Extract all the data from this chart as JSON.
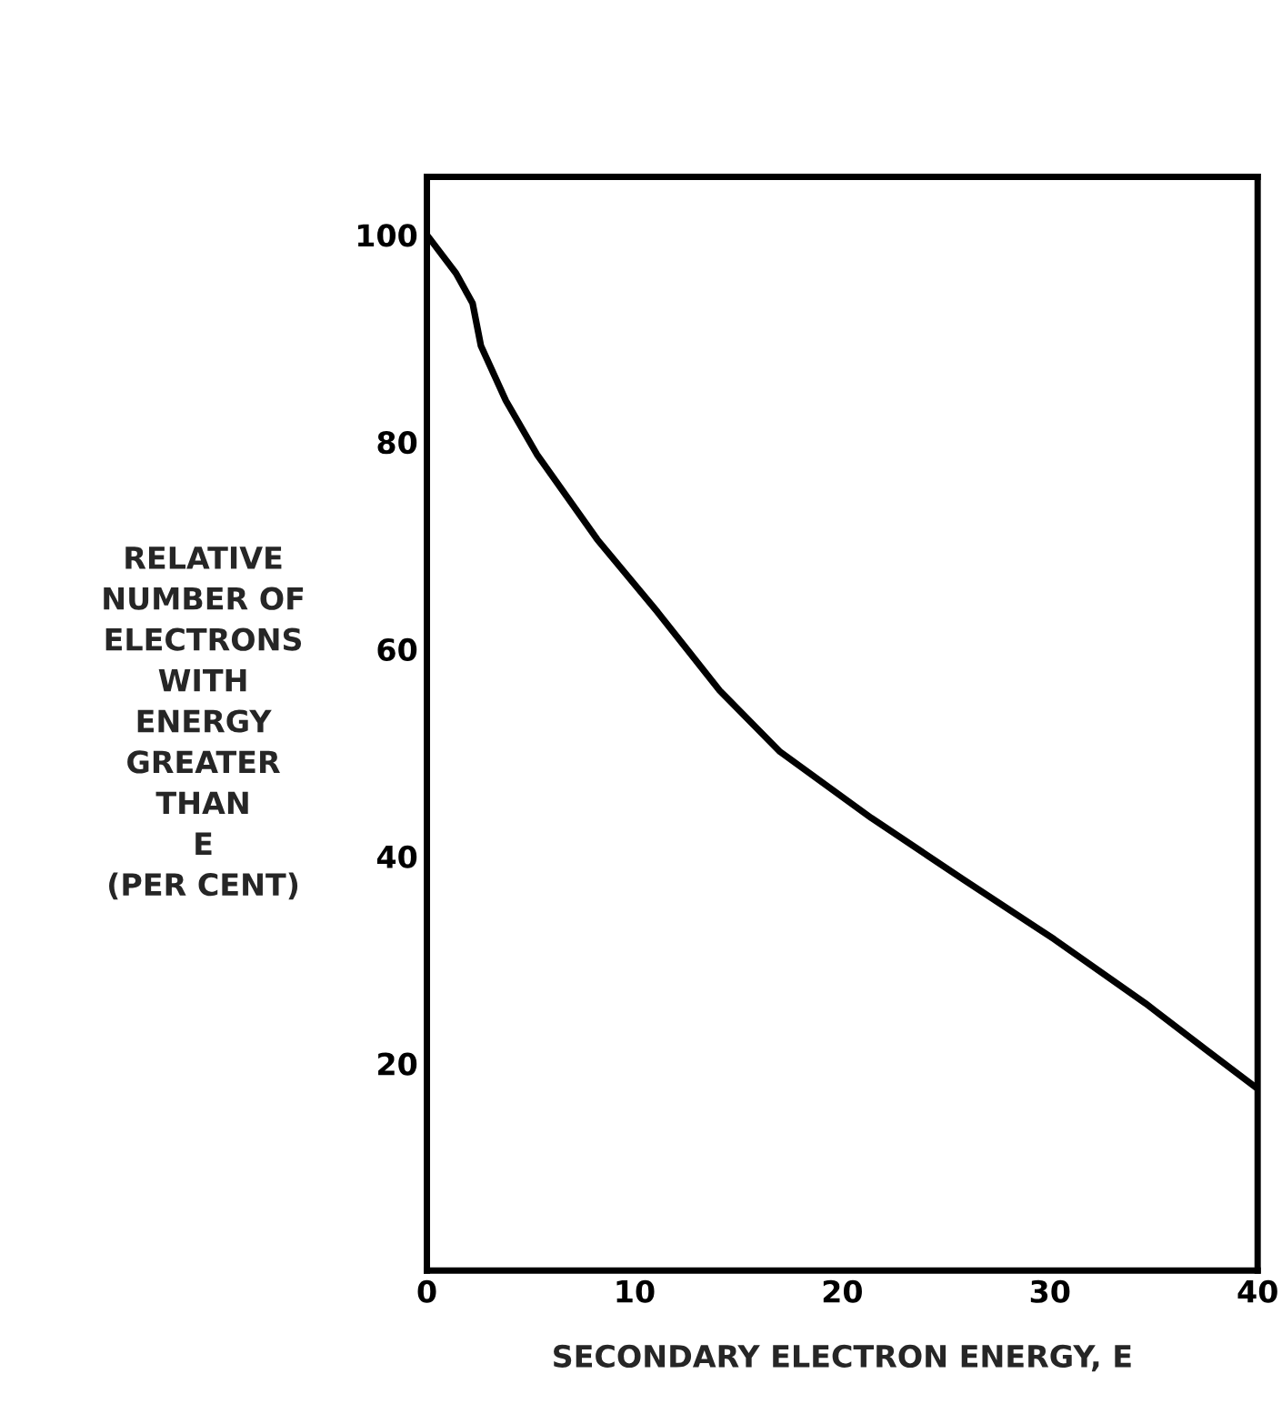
{
  "chart_data": {
    "type": "line",
    "xlabel": "SECONDARY ELECTRON ENERGY, E",
    "ylabel": "RELATIVE\nNUMBER OF\nELECTRONS\nWITH\nENERGY\nGREATER\nTHAN\nE\n(PER CENT)",
    "x": [
      0,
      1.4,
      2.2,
      2.6,
      3.8,
      5.3,
      8.2,
      11.1,
      14.1,
      17.0,
      21.4,
      25.8,
      30.2,
      34.6,
      37.6,
      39.9
    ],
    "series": [
      {
        "color": "#000000",
        "values": [
          100,
          96.3,
          93.4,
          89.3,
          84.0,
          78.8,
          70.6,
          63.6,
          56.0,
          50.1,
          43.7,
          37.8,
          32.0,
          25.8,
          21.2,
          17.7
        ]
      }
    ],
    "xlim": [
      0,
      40
    ],
    "xticks": [
      0,
      10,
      20,
      30,
      40
    ],
    "ylim": [
      0,
      105.6
    ],
    "yticks": [
      20,
      40,
      60,
      80,
      100
    ],
    "grid": false,
    "legend": false,
    "marker": "none",
    "line_style": "solid"
  }
}
